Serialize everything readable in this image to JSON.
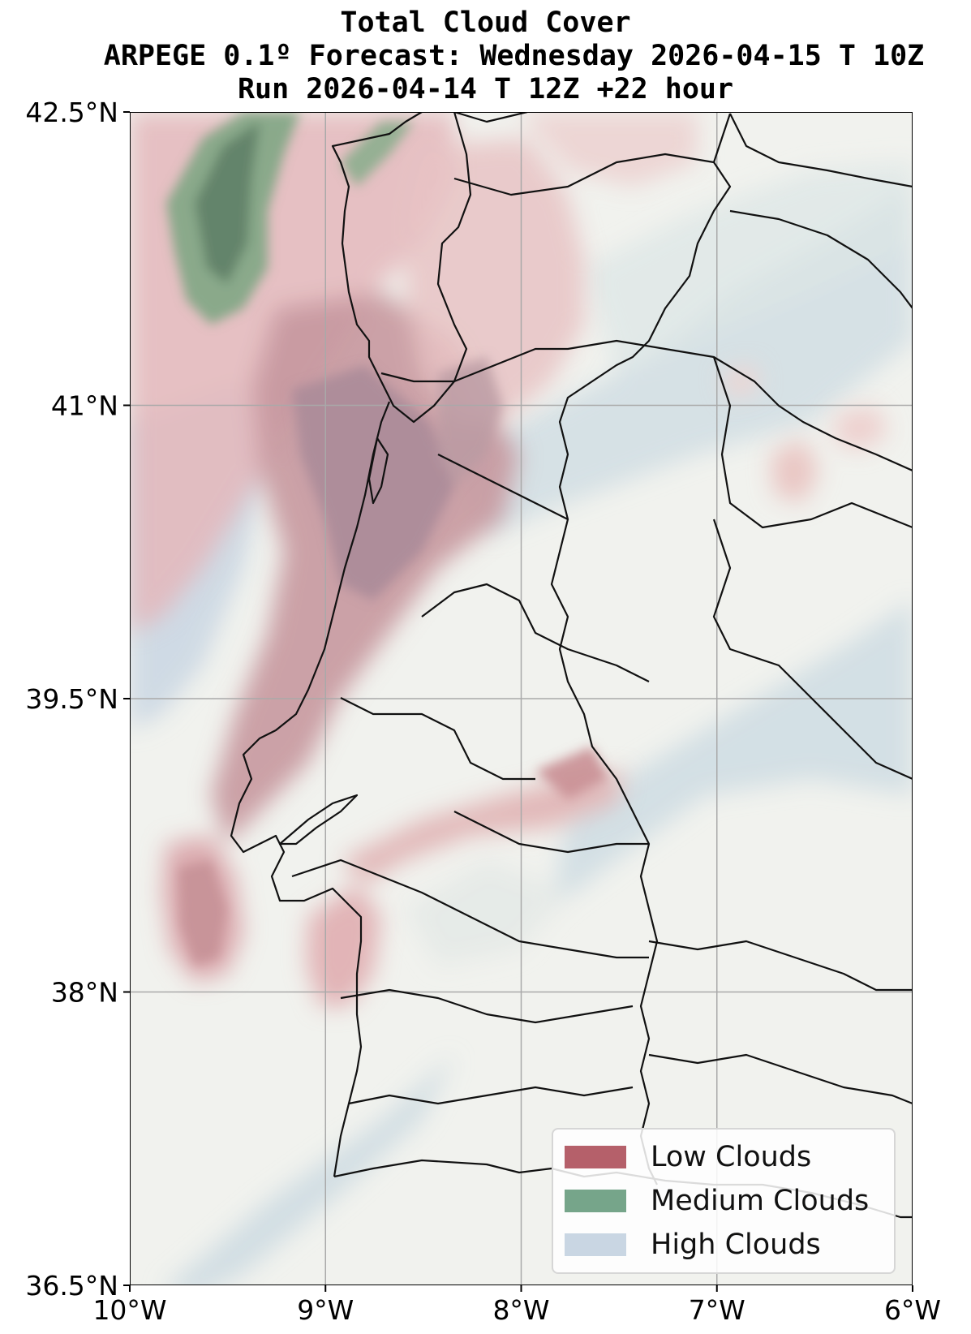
{
  "title": {
    "line1": "Total Cloud Cover",
    "line2": "ARPEGE 0.1º Forecast: Wednesday 2026-04-15 T 10Z",
    "line3": "Run 2026-04-14 T 12Z +22 hour"
  },
  "map": {
    "lon_range": [
      -10,
      -6
    ],
    "lat_range": [
      36.5,
      42.5
    ],
    "x_ticks": [
      {
        "value": -10,
        "label": "10°W"
      },
      {
        "value": -9,
        "label": "9°W"
      },
      {
        "value": -8,
        "label": "8°W"
      },
      {
        "value": -7,
        "label": "7°W"
      },
      {
        "value": -6,
        "label": "6°W"
      }
    ],
    "y_ticks": [
      {
        "value": 42.5,
        "label": "42.5°N"
      },
      {
        "value": 41,
        "label": "41°N"
      },
      {
        "value": 39.5,
        "label": "39.5°N"
      },
      {
        "value": 38,
        "label": "38°N"
      },
      {
        "value": 36.5,
        "label": "36.5°N"
      }
    ],
    "gridlines": true,
    "background_color": "#f1f2ee"
  },
  "legend": {
    "placement": "lower-right",
    "items": [
      {
        "label": "Low Clouds",
        "color": "#b5606a"
      },
      {
        "label": "Medium Clouds",
        "color": "#76a58a"
      },
      {
        "label": "High Clouds",
        "color": "#c9d6e3"
      }
    ]
  }
}
